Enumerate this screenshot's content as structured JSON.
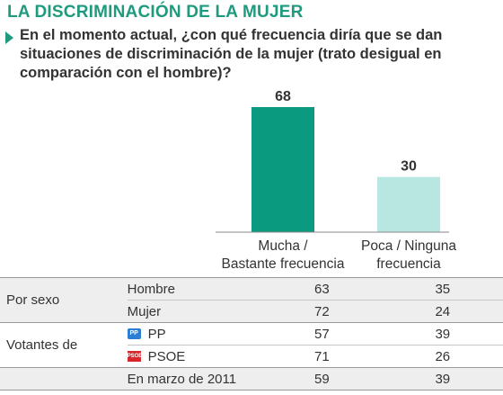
{
  "header": {
    "title": "LA DISCRIMINACIÓN DE LA MUJER",
    "question": "En el momento actual, ¿con qué frecuencia diría que se dan situaciones de discriminación de la mujer (trato desigual en comparación con el hombre)?"
  },
  "chart_data": {
    "type": "bar",
    "title": "",
    "categories": [
      "Mucha / Bastante frecuencia",
      "Poca / Ninguna frecuencia"
    ],
    "category_lines": [
      [
        "Mucha /",
        "Bastante frecuencia"
      ],
      [
        "Poca / Ninguna",
        "frecuencia"
      ]
    ],
    "values": [
      68,
      30
    ],
    "colors": [
      "#0a9a80",
      "#b8e6e0"
    ],
    "ylim": [
      0,
      68
    ],
    "grid": false,
    "legend": "none",
    "xlabel": "",
    "ylabel": ""
  },
  "table": {
    "columns": [
      "Mucha / Bastante frecuencia",
      "Poca / Ninguna frecuencia"
    ],
    "groups": [
      {
        "label": "Por sexo",
        "rows": [
          {
            "label": "Hombre",
            "values": [
              "63",
              "35"
            ]
          },
          {
            "label": "Mujer",
            "values": [
              "72",
              "24"
            ]
          }
        ]
      },
      {
        "label": "Votantes de",
        "rows": [
          {
            "label": "PP",
            "logo": "pp-logo-icon",
            "logo_color": "#2a7fd4",
            "values": [
              "57",
              "39"
            ]
          },
          {
            "label": "PSOE",
            "logo": "psoe-logo-icon",
            "logo_color": "#d8262b",
            "values": [
              "71",
              "26"
            ]
          }
        ]
      },
      {
        "label": "",
        "rows": [
          {
            "label": "En marzo de 2011",
            "values": [
              "59",
              "39"
            ]
          }
        ]
      }
    ]
  }
}
